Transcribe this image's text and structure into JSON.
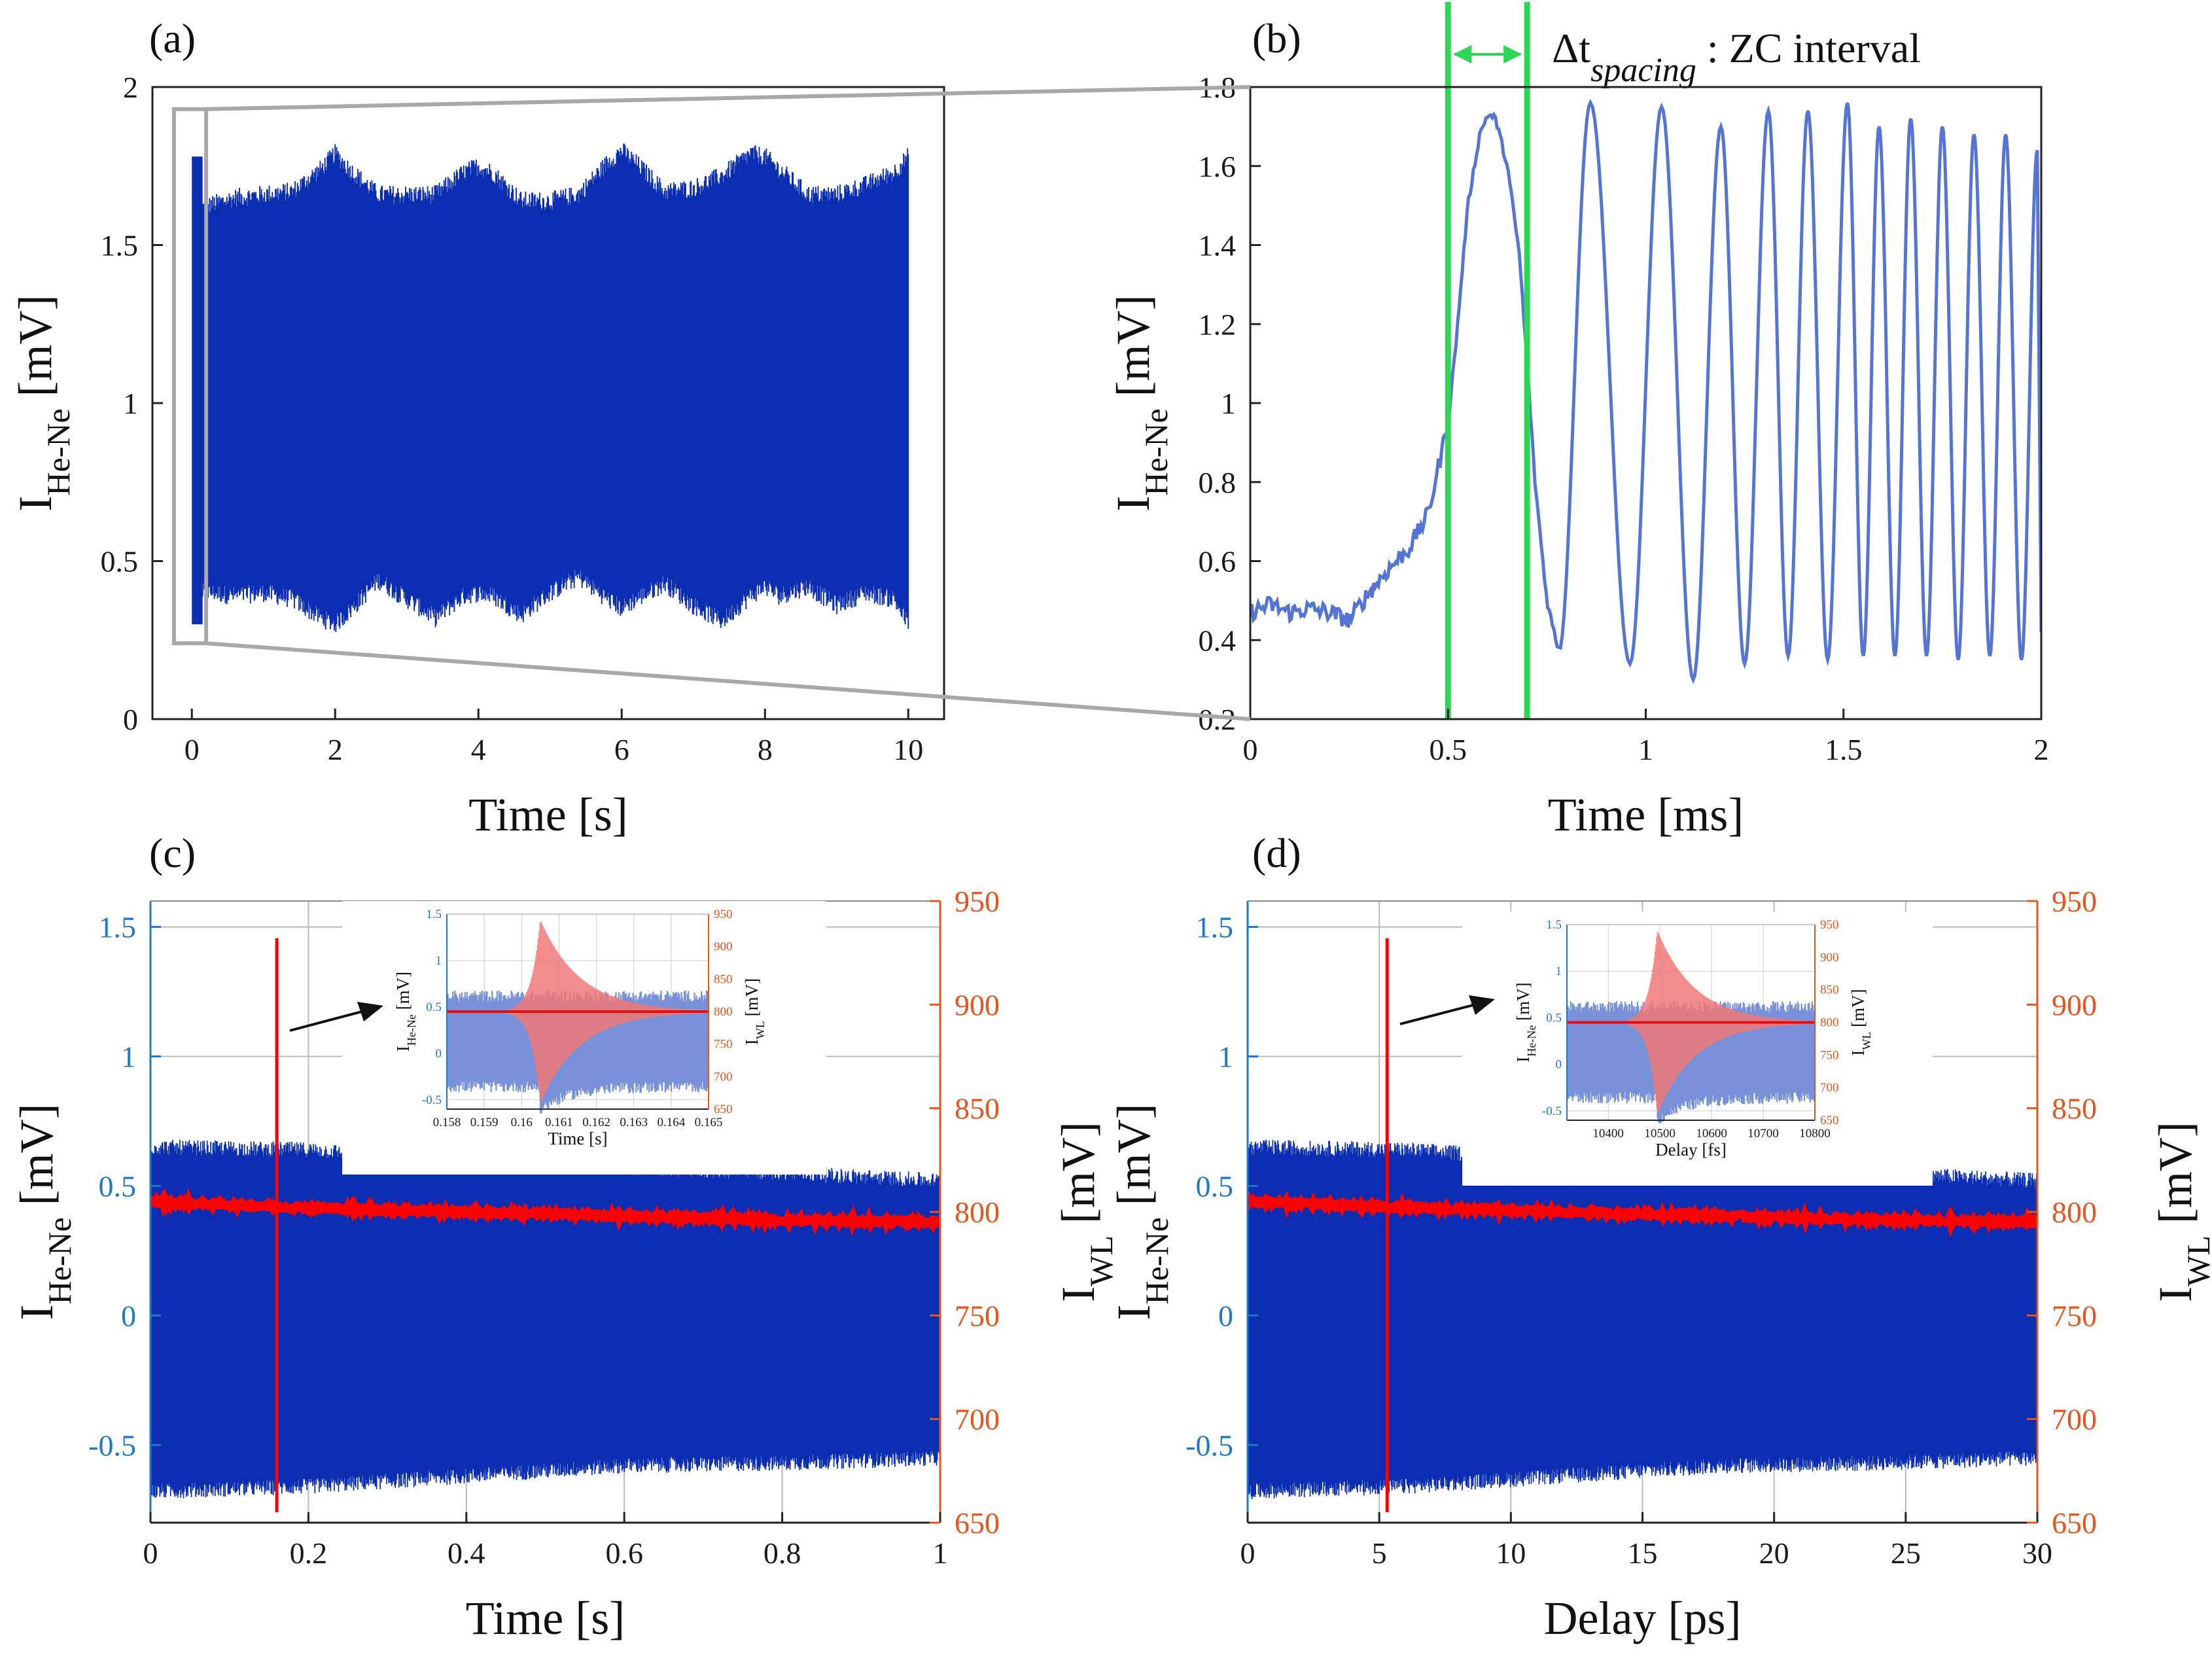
{
  "chart_data": [
    {
      "id": "a",
      "panel_label": "(a)",
      "type": "line",
      "xlabel": "Time [s]",
      "ylabel": "I",
      "ylabel_sub": "He-Ne",
      "ylabel_unit": " [mV]",
      "xlim": [
        -0.55,
        10.5
      ],
      "ylim": [
        0,
        2
      ],
      "xticks": [
        0,
        2,
        4,
        6,
        8,
        10
      ],
      "yticks": [
        0,
        0.5,
        1,
        1.5,
        2
      ],
      "xtick_labels": [
        "0",
        "2",
        "4",
        "6",
        "8",
        "10"
      ],
      "ytick_labels": [
        "0",
        "0.5",
        "1",
        "1.5",
        "2"
      ],
      "series": [
        {
          "name": "I_He-Ne envelope",
          "color": "#0a2db2",
          "x": [
            0.15,
            0.3,
            0.6,
            1.0,
            1.4,
            1.8,
            2.0,
            2.2,
            2.6,
            3.0,
            3.4,
            3.8,
            4.0,
            4.2,
            4.6,
            5.0,
            5.4,
            5.8,
            6.0,
            6.2,
            6.6,
            7.0,
            7.4,
            7.8,
            8.0,
            8.2,
            8.6,
            9.0,
            9.4,
            9.8,
            10.0
          ],
          "upper": [
            1.62,
            1.63,
            1.65,
            1.66,
            1.67,
            1.74,
            1.79,
            1.74,
            1.66,
            1.66,
            1.66,
            1.73,
            1.75,
            1.73,
            1.64,
            1.64,
            1.66,
            1.76,
            1.8,
            1.76,
            1.67,
            1.68,
            1.72,
            1.79,
            1.78,
            1.74,
            1.66,
            1.66,
            1.69,
            1.73,
            1.78
          ],
          "lower": [
            0.4,
            0.4,
            0.39,
            0.4,
            0.38,
            0.32,
            0.3,
            0.34,
            0.44,
            0.38,
            0.32,
            0.39,
            0.4,
            0.39,
            0.33,
            0.4,
            0.45,
            0.38,
            0.35,
            0.38,
            0.43,
            0.36,
            0.31,
            0.39,
            0.42,
            0.39,
            0.42,
            0.36,
            0.4,
            0.38,
            0.3
          ]
        }
      ],
      "annotation": "zoom box 0-0.2 s"
    },
    {
      "id": "b",
      "panel_label": "(b)",
      "type": "line",
      "xlabel": "Time [ms]",
      "ylabel": "I",
      "ylabel_sub": "He-Ne",
      "ylabel_unit": " [mV]",
      "xlim": [
        0,
        2
      ],
      "ylim": [
        0.2,
        1.8
      ],
      "xticks": [
        0,
        0.5,
        1,
        1.5,
        2
      ],
      "yticks": [
        0.2,
        0.4,
        0.6,
        0.8,
        1,
        1.2,
        1.4,
        1.6,
        1.8
      ],
      "xtick_labels": [
        "0",
        "0.5",
        "1",
        "1.5",
        "2"
      ],
      "ytick_labels": [
        "0.2",
        "0.4",
        "0.6",
        "0.8",
        "1",
        "1.2",
        "1.4",
        "1.6",
        "1.8"
      ],
      "series": [
        {
          "name": "I_He-Ne",
          "color": "#5574d4",
          "x": [
            0,
            0.05,
            0.1,
            0.15,
            0.2,
            0.25,
            0.3,
            0.35,
            0.4,
            0.45,
            0.5,
            0.52,
            0.55,
            0.58,
            0.6,
            0.62,
            0.65,
            0.68,
            0.7,
            0.72,
            0.75,
            0.78
          ],
          "y": [
            0.47,
            0.49,
            0.47,
            0.48,
            0.47,
            0.45,
            0.52,
            0.58,
            0.63,
            0.72,
            0.95,
            1.15,
            1.5,
            1.68,
            1.73,
            1.72,
            1.6,
            1.38,
            1.1,
            0.8,
            0.5,
            0.37
          ],
          "oscillation_peaks_x": [
            0.78,
            0.86,
            0.96,
            1.04,
            1.12,
            1.19,
            1.25,
            1.31,
            1.36,
            1.41,
            1.46,
            1.51,
            1.55,
            1.59,
            1.63,
            1.67,
            1.71,
            1.75,
            1.79,
            1.83,
            1.87,
            1.91,
            1.95,
            1.99
          ],
          "oscillation_peaks_y": [
            0.37,
            1.76,
            0.34,
            1.75,
            0.3,
            1.7,
            0.34,
            1.74,
            0.36,
            1.74,
            0.35,
            1.76,
            0.36,
            1.7,
            0.36,
            1.72,
            0.36,
            1.7,
            0.35,
            1.68,
            0.36,
            1.68,
            0.35,
            1.64
          ]
        }
      ],
      "annotation": {
        "vlines_x": [
          0.5,
          0.7
        ],
        "text_prefix": "Δt",
        "text_sub": "spacing",
        "text_suffix": " : ZC interval",
        "color": "#2fd655"
      }
    },
    {
      "id": "c",
      "panel_label": "(c)",
      "type": "line",
      "xlabel": "Time [s]",
      "ylabel": "I",
      "ylabel_sub": "He-Ne",
      "ylabel_unit": " [mV]",
      "y2label": "I",
      "y2label_sub": "WL",
      "y2label_unit": " [mV]",
      "xlim": [
        0,
        1
      ],
      "ylim": [
        -0.8,
        1.6
      ],
      "y2lim": [
        650,
        950
      ],
      "xticks": [
        0,
        0.2,
        0.4,
        0.6,
        0.8,
        1
      ],
      "yticks": [
        -0.5,
        0,
        0.5,
        1,
        1.5
      ],
      "y2ticks": [
        650,
        700,
        750,
        800,
        850,
        900,
        950
      ],
      "xtick_labels": [
        "0",
        "0.2",
        "0.4",
        "0.6",
        "0.8",
        "1"
      ],
      "ytick_labels": [
        "-0.5",
        "0",
        "0.5",
        "1",
        "1.5"
      ],
      "y2tick_labels": [
        "650",
        "700",
        "750",
        "800",
        "850",
        "900",
        "950"
      ],
      "grid": true,
      "series": [
        {
          "name": "I_He-Ne",
          "color": "#0a2db2",
          "x": [
            0,
            0.2,
            0.4,
            0.6,
            0.8,
            1.0
          ],
          "upper": [
            0.65,
            0.64,
            0.6,
            0.57,
            0.55,
            0.52
          ],
          "lower": [
            -0.68,
            -0.66,
            -0.62,
            -0.58,
            -0.57,
            -0.55
          ]
        },
        {
          "name": "I_WL",
          "color": "#ff0000",
          "x": [
            0,
            0.2,
            0.4,
            0.6,
            0.8,
            1.0
          ],
          "y": [
            805,
            802,
            800,
            798,
            796,
            795
          ],
          "spike_x": 0.16,
          "spike_range": [
            655,
            932
          ]
        }
      ],
      "inset": {
        "xlabel": "Time [s]",
        "ylabel": "I",
        "ylabel_sub": "He-Ne",
        "ylabel_unit": " [mV]",
        "y2label": "I",
        "y2label_sub": "WL",
        "y2label_unit": " [mV]",
        "xlim": [
          0.158,
          0.165
        ],
        "ylim": [
          -0.6,
          1.5
        ],
        "y2lim": [
          650,
          950
        ],
        "xticks": [
          0.158,
          0.159,
          0.16,
          0.161,
          0.162,
          0.163,
          0.164,
          0.165
        ],
        "xtick_labels": [
          "0.158",
          "0.159",
          "0.16",
          "0.161",
          "0.162",
          "0.163",
          "0.164",
          "0.165"
        ],
        "yticks": [
          -0.5,
          0,
          0.5,
          1,
          1.5
        ],
        "ytick_labels": [
          "-0.5",
          "0",
          "0.5",
          "1",
          "1.5"
        ],
        "y2ticks": [
          650,
          700,
          750,
          800,
          850,
          900,
          950
        ],
        "y2tick_labels": [
          "650",
          "700",
          "750",
          "800",
          "850",
          "900",
          "950"
        ],
        "center_x": 0.1605
      }
    },
    {
      "id": "d",
      "panel_label": "(d)",
      "type": "line",
      "xlabel": "Delay [ps]",
      "ylabel": "I",
      "ylabel_sub": "He-Ne",
      "ylabel_unit": " [mV]",
      "y2label": "I",
      "y2label_sub": "WL",
      "y2label_unit": " [mV]",
      "xlim": [
        0,
        30
      ],
      "ylim": [
        -0.8,
        1.6
      ],
      "y2lim": [
        650,
        950
      ],
      "xticks": [
        0,
        5,
        10,
        15,
        20,
        25,
        30
      ],
      "yticks": [
        -0.5,
        0,
        0.5,
        1,
        1.5
      ],
      "y2ticks": [
        650,
        700,
        750,
        800,
        850,
        900,
        950
      ],
      "xtick_labels": [
        "0",
        "5",
        "10",
        "15",
        "20",
        "25",
        "30"
      ],
      "ytick_labels": [
        "-0.5",
        "0",
        "0.5",
        "1",
        "1.5"
      ],
      "y2tick_labels": [
        "650",
        "700",
        "750",
        "800",
        "850",
        "900",
        "950"
      ],
      "grid": true,
      "series": [
        {
          "name": "I_He-Ne",
          "color": "#0a2db2",
          "x": [
            0,
            6,
            12,
            18,
            24,
            30
          ],
          "upper": [
            0.65,
            0.64,
            0.6,
            0.57,
            0.55,
            0.52
          ],
          "lower": [
            -0.68,
            -0.66,
            -0.62,
            -0.58,
            -0.57,
            -0.55
          ]
        },
        {
          "name": "I_WL",
          "color": "#ff0000",
          "x": [
            0,
            6,
            12,
            18,
            24,
            30
          ],
          "y": [
            805,
            802,
            800,
            798,
            796,
            795
          ],
          "spike_x": 5.3,
          "spike_range": [
            655,
            932
          ]
        }
      ],
      "inset": {
        "xlabel": "Delay [fs]",
        "ylabel": "I",
        "ylabel_sub": "He-Ne",
        "ylabel_unit": " [mV]",
        "y2label": "I",
        "y2label_sub": "WL",
        "y2label_unit": " [mV]",
        "xlim": [
          10320,
          10800
        ],
        "ylim": [
          -0.6,
          1.5
        ],
        "y2lim": [
          650,
          950
        ],
        "xticks": [
          10400,
          10500,
          10600,
          10700,
          10800
        ],
        "xtick_labels": [
          "10400",
          "10500",
          "10600",
          "10700",
          "10800"
        ],
        "yticks": [
          -0.5,
          0,
          0.5,
          1,
          1.5
        ],
        "ytick_labels": [
          "-0.5",
          "0",
          "0.5",
          "1",
          "1.5"
        ],
        "y2ticks": [
          650,
          700,
          750,
          800,
          850,
          900,
          950
        ],
        "y2tick_labels": [
          "650",
          "700",
          "750",
          "800",
          "850",
          "900",
          "950"
        ],
        "center_x": 10495
      }
    }
  ],
  "colors": {
    "blue_dense": "#0a2db2",
    "blue_line": "#5574d4",
    "red": "#ff0000",
    "green": "#2fd655",
    "axis_blue": "#1f78c8",
    "axis_orange": "#e8541b",
    "zoom_gray": "#a8a8a8"
  }
}
